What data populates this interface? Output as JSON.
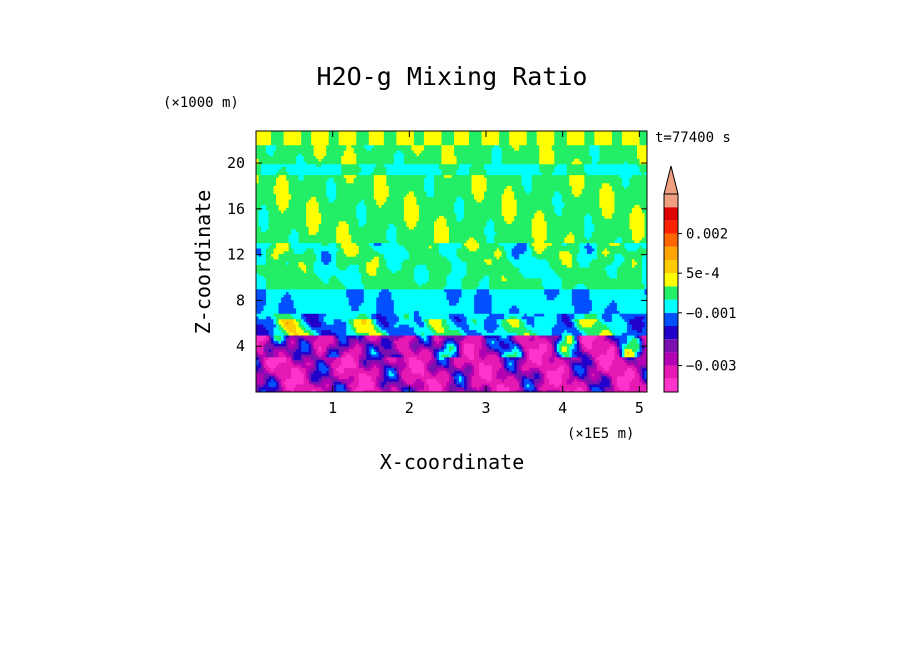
{
  "chart_data": {
    "type": "heatmap",
    "title": "H2O-g Mixing Ratio",
    "xlabel": "X-coordinate",
    "ylabel": "Z-coordinate",
    "x_unit": "(×1E5 m)",
    "y_unit": "(×1000 m)",
    "time_label": "t=77400 s",
    "xlim": [
      0,
      5.1
    ],
    "ylim": [
      0,
      22.8
    ],
    "x_ticks": [
      1,
      2,
      3,
      4,
      5
    ],
    "x_tick_labels": [
      "1",
      "2",
      "3",
      "4",
      "5"
    ],
    "y_ticks": [
      4,
      8,
      12,
      16,
      20
    ],
    "y_tick_labels": [
      "4",
      "8",
      "12",
      "16",
      "20"
    ],
    "colorbar": {
      "levels": [
        -0.005,
        -0.004,
        -0.003,
        -0.0025,
        -0.002,
        -0.0015,
        -0.001,
        -0.0005,
        0,
        0.0005,
        0.001,
        0.0015,
        0.002,
        0.0025,
        0.003
      ],
      "colors": [
        "#ff33cc",
        "#e619b3",
        "#b300b3",
        "#7a10b0",
        "#2200cc",
        "#0050ff",
        "#00ffff",
        "#22ee66",
        "#ffff00",
        "#ffcc00",
        "#ffa500",
        "#ff6600",
        "#ff2200",
        "#dd0000",
        "#f0a080"
      ],
      "tick_values": [
        0.002,
        0.0005,
        -0.001,
        -0.003
      ],
      "tick_labels": [
        "0.002",
        "5e-4",
        "−0.001",
        "−0.003"
      ],
      "extend": "max"
    },
    "field_description_levels": {
      "upper_layer_z": [
        13,
        22.8
      ],
      "upper_value": 0.0,
      "mid_layer_value": -0.0005,
      "cyan_band_z": [
        7,
        9
      ],
      "lower_layer_z": [
        0,
        5
      ],
      "lower_value": -0.003
    }
  }
}
